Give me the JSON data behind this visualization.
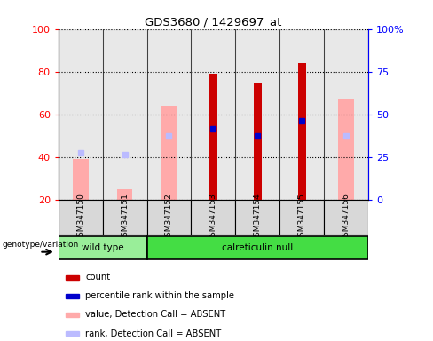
{
  "title": "GDS3680 / 1429697_at",
  "samples": [
    "GSM347150",
    "GSM347151",
    "GSM347152",
    "GSM347153",
    "GSM347154",
    "GSM347155",
    "GSM347156"
  ],
  "ylim_left": [
    20,
    100
  ],
  "ylim_right": [
    0,
    100
  ],
  "yticks_left": [
    20,
    40,
    60,
    80,
    100
  ],
  "yticks_right": [
    0,
    25,
    50,
    75,
    100
  ],
  "yticklabels_right": [
    "0",
    "25",
    "50",
    "75",
    "100%"
  ],
  "red_bars": [
    null,
    null,
    null,
    79,
    75,
    84,
    null
  ],
  "pink_bars": [
    39,
    25,
    64,
    null,
    null,
    null,
    67
  ],
  "blue_squares_left": [
    null,
    null,
    null,
    53,
    50,
    57,
    null
  ],
  "light_blue_squares_left": [
    42,
    41,
    50,
    null,
    null,
    null,
    50
  ],
  "red_color": "#cc0000",
  "pink_color": "#ffaaaa",
  "blue_color": "#0000cc",
  "light_blue_color": "#bbbbff",
  "bar_width": 0.35,
  "red_bar_width": 0.18,
  "wt_color": "#99ee99",
  "cr_color": "#44dd44",
  "group_border_color": "#000000",
  "col_bg_color": "#cccccc",
  "legend_items": [
    {
      "color": "#cc0000",
      "label": "count"
    },
    {
      "color": "#0000cc",
      "label": "percentile rank within the sample"
    },
    {
      "color": "#ffaaaa",
      "label": "value, Detection Call = ABSENT"
    },
    {
      "color": "#bbbbff",
      "label": "rank, Detection Call = ABSENT"
    }
  ]
}
